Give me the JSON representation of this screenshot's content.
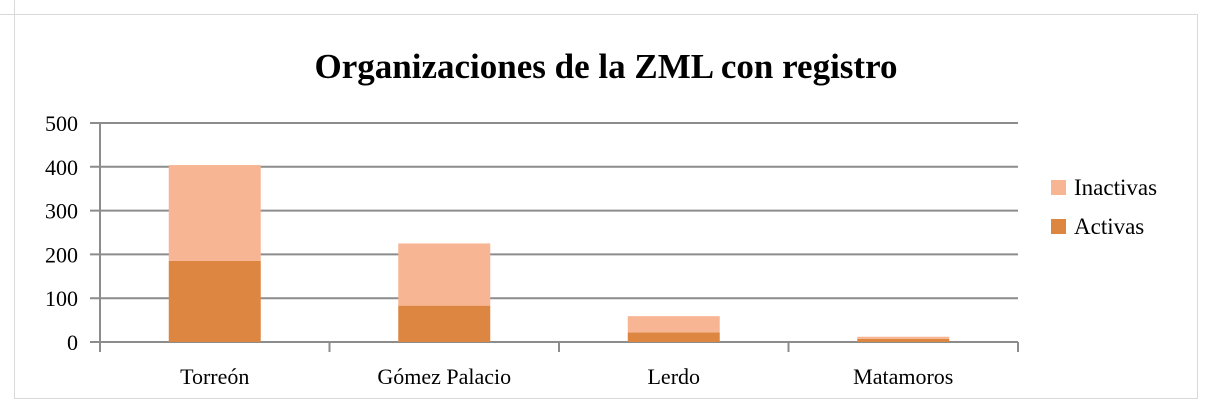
{
  "chart_data": {
    "type": "bar",
    "stacked": true,
    "title": "Organizaciones de la ZML con registro",
    "xlabel": "",
    "ylabel": "",
    "categories": [
      "Torreón",
      "Gómez Palacio",
      "Lerdo",
      "Matamoros"
    ],
    "series": [
      {
        "name": "Activas",
        "values": [
          185,
          83,
          22,
          7
        ],
        "color": "#dd8641"
      },
      {
        "name": "Inactivas",
        "values": [
          219,
          142,
          37,
          5
        ],
        "color": "#f8b593"
      }
    ],
    "ylim": [
      0,
      500
    ],
    "yticks": [
      "0",
      "100",
      "200",
      "300",
      "400",
      "500"
    ],
    "grid": true,
    "legend_position": "right",
    "legend_order": [
      "Inactivas",
      "Activas"
    ],
    "gridline_color": "#8c8c8c"
  }
}
